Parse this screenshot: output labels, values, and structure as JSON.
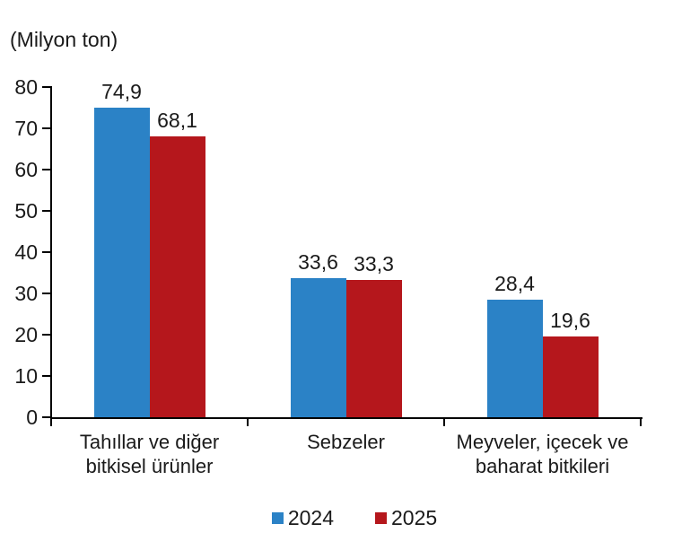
{
  "unit_label": "(Milyon ton)",
  "chart_data": {
    "type": "bar",
    "title": "",
    "unit_label": "(Milyon ton)",
    "categories": [
      "Tahıllar ve diğer bitkisel ürünler",
      "Sebzeler",
      "Meyveler, içecek ve baharat bitkileri"
    ],
    "category_labels_wrapped": [
      "Tahıllar ve diğer\nbitkisel ürünler",
      "Sebzeler",
      "Meyveler, içecek ve\nbaharat  bitkileri"
    ],
    "series": [
      {
        "name": "2024",
        "color": "#2b82c6",
        "values": [
          74.9,
          33.6,
          28.4
        ],
        "value_labels": [
          "74,9",
          "33,6",
          "28,4"
        ]
      },
      {
        "name": "2025",
        "color": "#b5171c",
        "values": [
          68.1,
          33.3,
          19.6
        ],
        "value_labels": [
          "68,1",
          "33,3",
          "19,6"
        ]
      }
    ],
    "ylim": [
      0,
      80
    ],
    "ytick_step": 10,
    "ytick_labels": [
      "0",
      "10",
      "20",
      "30",
      "40",
      "50",
      "60",
      "70",
      "80"
    ],
    "grid": false,
    "legend_position": "bottom",
    "background_color": "#ffffff",
    "axis_color": "#000000",
    "text_color": "#1a1a1a"
  }
}
